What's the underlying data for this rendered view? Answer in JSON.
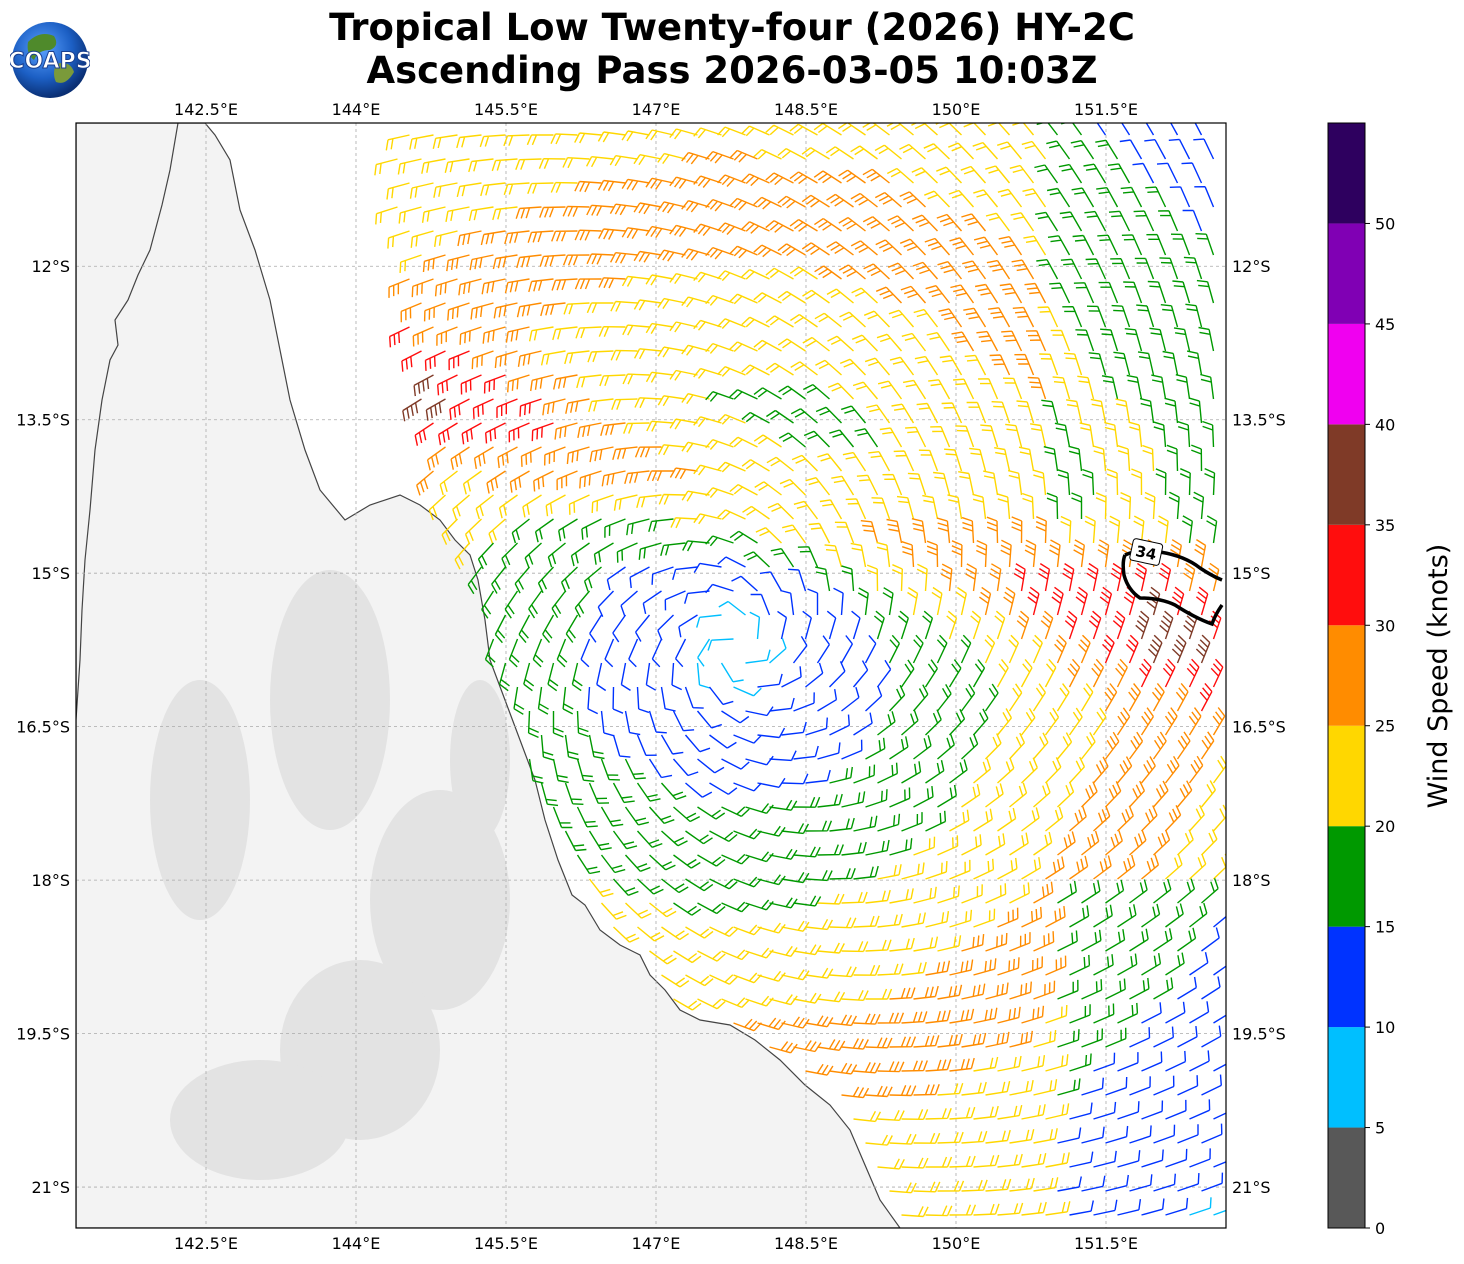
{
  "title": {
    "line1": "Tropical Low Twenty-four (2026) HY-2C",
    "line2": "Ascending Pass 2026-03-05 10:03Z"
  },
  "logo": {
    "text": "COAPS"
  },
  "map": {
    "lon_range": [
      141.2,
      152.7
    ],
    "lat_range": [
      -21.4,
      -10.6
    ],
    "lon_ticks": [
      "142.5°E",
      "144°E",
      "145.5°E",
      "147°E",
      "148.5°E",
      "150°E",
      "151.5°E"
    ],
    "lat_ticks": [
      "12°S",
      "13.5°S",
      "15°S",
      "16.5°S",
      "18°S",
      "19.5°S",
      "21°S"
    ],
    "contour_label": "34",
    "land_color": "#f3f3f3",
    "coast_color": "#444444"
  },
  "colorbar": {
    "label": "Wind Speed (knots)",
    "ticks": [
      "0",
      "5",
      "10",
      "15",
      "20",
      "25",
      "30",
      "35",
      "40",
      "45",
      "50"
    ],
    "colors": [
      "#585858",
      "#00bfff",
      "#0033ff",
      "#009900",
      "#ffd700",
      "#ff8c00",
      "#ff0d0d",
      "#7f3a27",
      "#f000f0",
      "#8000b4",
      "#2e005f"
    ]
  },
  "chart_data": {
    "type": "wind-barb-map",
    "units": "knots",
    "center_lon": 147.8,
    "center_lat": -15.7,
    "speed_bands": [
      0,
      5,
      10,
      15,
      20,
      25,
      30,
      35,
      40,
      45,
      50
    ],
    "gale_contour_knots": 34
  }
}
